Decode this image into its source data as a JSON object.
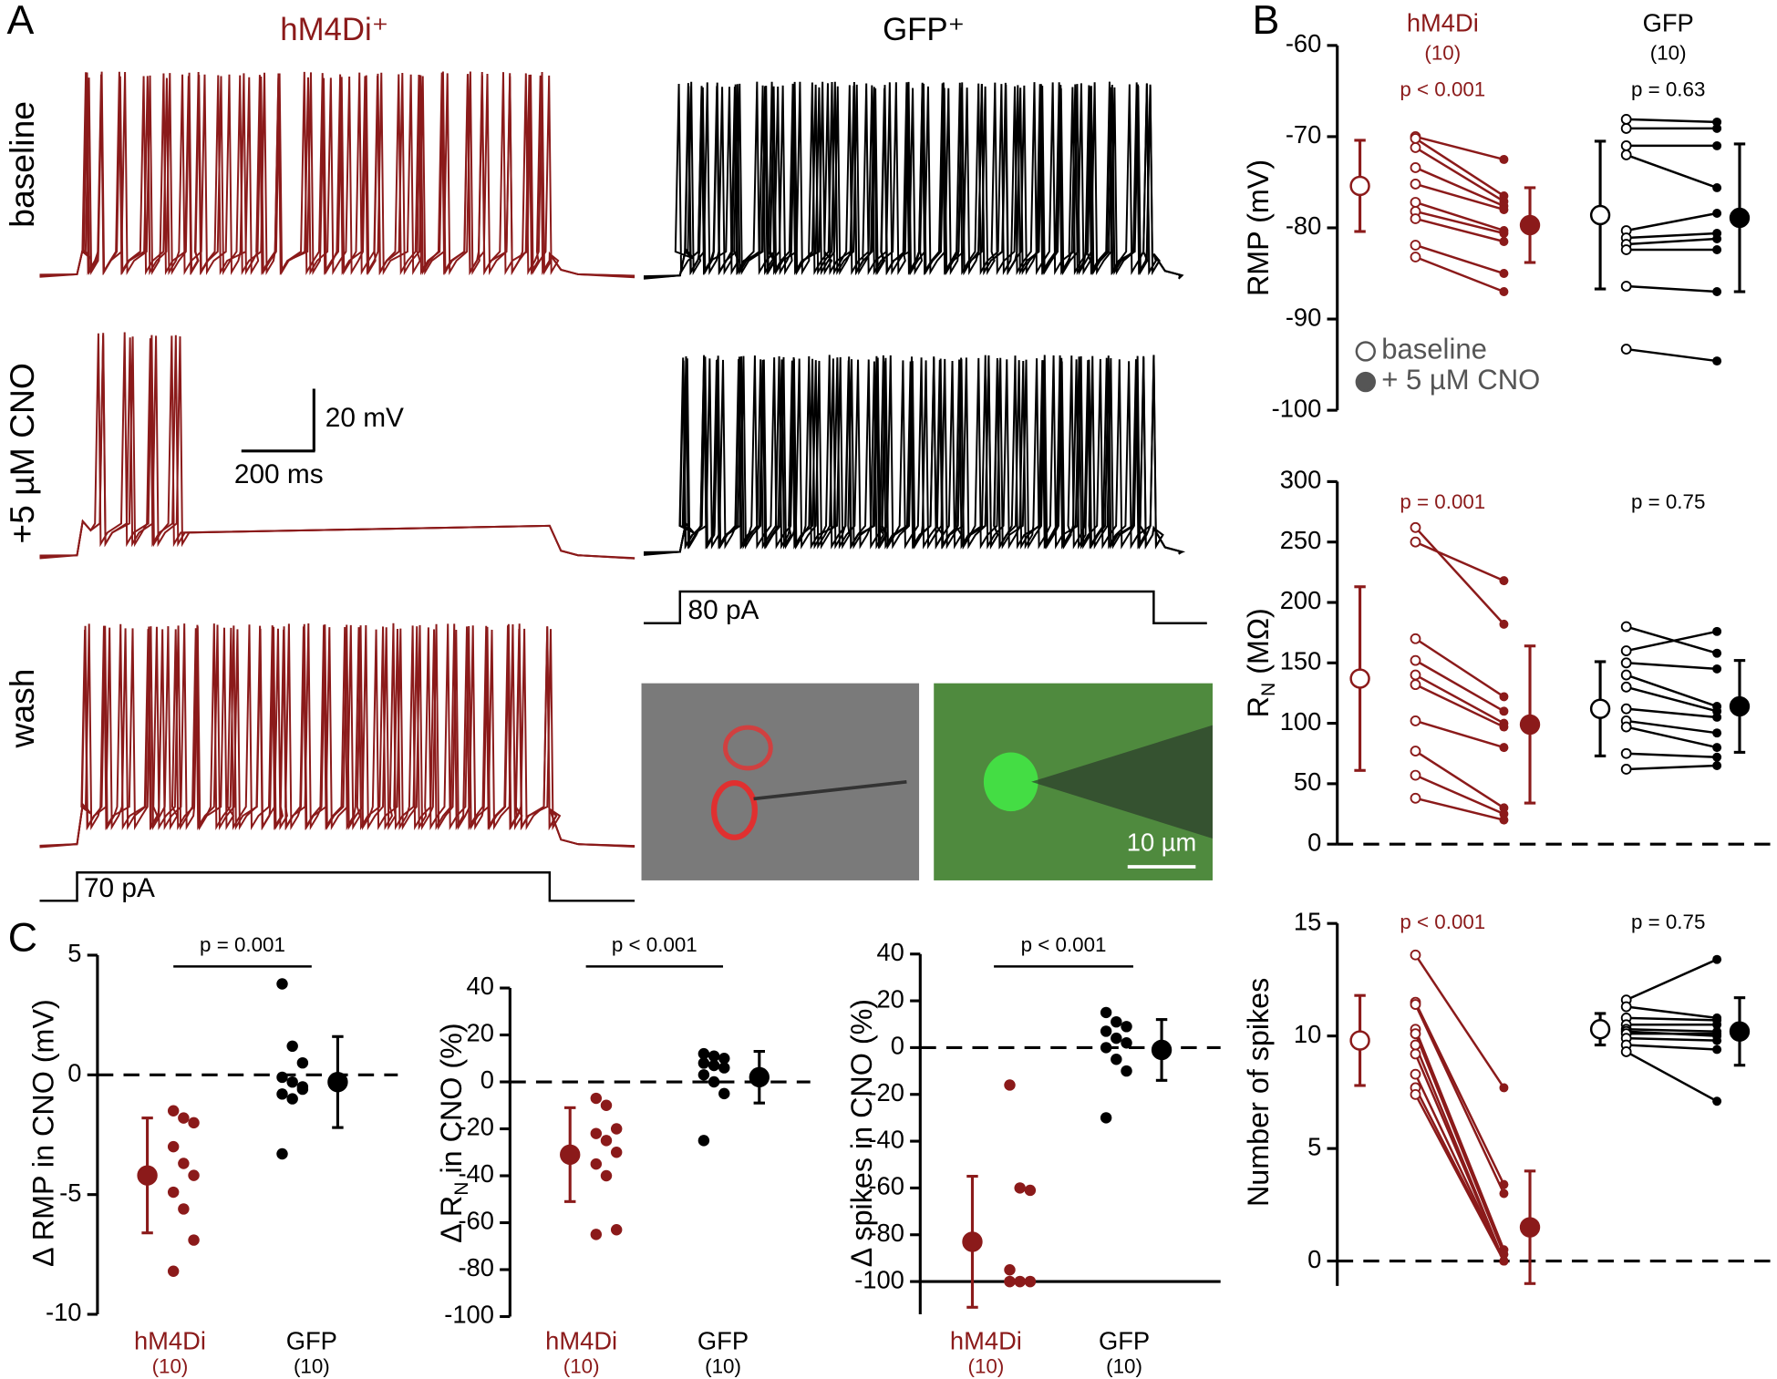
{
  "panel_labels": [
    "A",
    "B",
    "C"
  ],
  "panel_a": {
    "columns": [
      "hM4Di⁺",
      "GFP⁺"
    ],
    "rows": [
      "baseline",
      "+5 µM CNO",
      "wash"
    ],
    "scale_voltage": "20 mV",
    "scale_time": "200 ms",
    "currents": [
      "70 pA",
      "80 pA"
    ],
    "image_scale": "10 µm"
  },
  "chart_data": [
    {
      "type": "paired",
      "y_label": "RMP (mV)",
      "ylim": [
        -100,
        -60
      ],
      "yticks": [
        -100,
        -90,
        -80,
        -70,
        -60
      ],
      "legend": [
        "baseline",
        "+ 5 µM CNO"
      ],
      "groups": [
        {
          "name": "hM4Di",
          "n": "(10)",
          "color": "#8b1a1a",
          "p_label": "p < 0.001",
          "baseline": [
            -70.0,
            -70.2,
            -71.2,
            -73.4,
            -75.2,
            -77.2,
            -78.2,
            -79.0,
            -81.9,
            -83.2
          ],
          "cno": [
            -72.5,
            -76.5,
            -77.1,
            -77.6,
            -78.0,
            -80.3,
            -80.6,
            -81.5,
            -85.0,
            -87.0
          ],
          "baseline_mean": -75.4,
          "baseline_sd": 5.0,
          "cno_mean": -79.7,
          "cno_sd": 4.1
        },
        {
          "name": "GFP",
          "n": "(10)",
          "color": "#000000",
          "p_label": "p = 0.63",
          "baseline": [
            -68.1,
            -69.1,
            -71.0,
            -72.0,
            -80.3,
            -81.1,
            -81.8,
            -82.4,
            -86.4,
            -93.3
          ],
          "cno": [
            -68.4,
            -69.1,
            -71.0,
            -75.6,
            -78.4,
            -80.6,
            -81.2,
            -82.4,
            -87.0,
            -94.6
          ],
          "baseline_mean": -78.6,
          "baseline_sd": 8.1,
          "cno_mean": -78.9,
          "cno_sd": 8.1
        }
      ]
    },
    {
      "type": "paired",
      "y_label": "R",
      "y_label_sub": "N",
      "y_label_rest": " (MΩ)",
      "ylim": [
        0,
        300
      ],
      "yticks": [
        0,
        50,
        100,
        150,
        200,
        250,
        300
      ],
      "zero_line": true,
      "groups": [
        {
          "color": "#8b1a1a",
          "p_label": "p = 0.001",
          "baseline": [
            262,
            250,
            170,
            152,
            140,
            132,
            102,
            77,
            57,
            38
          ],
          "cno": [
            182,
            218,
            122,
            110,
            100,
            97,
            80,
            30,
            25,
            20
          ],
          "baseline_mean": 137,
          "baseline_sd": 76,
          "cno_mean": 99,
          "cno_sd": 65
        },
        {
          "color": "#000000",
          "p_label": "p = 0.75",
          "baseline": [
            180,
            160,
            150,
            140,
            130,
            112,
            102,
            97,
            75,
            62
          ],
          "cno": [
            158,
            176,
            145,
            114,
            110,
            105,
            92,
            80,
            72,
            65
          ],
          "baseline_mean": 112,
          "baseline_sd": 39,
          "cno_mean": 114,
          "cno_sd": 38
        }
      ]
    },
    {
      "type": "paired",
      "y_label": "Number of spikes",
      "ylim": [
        0,
        15
      ],
      "yticks": [
        0,
        5,
        10,
        15
      ],
      "zero_line": true,
      "groups": [
        {
          "color": "#8b1a1a",
          "p_label": "p < 0.001",
          "baseline": [
            13.6,
            11.5,
            11.4,
            10.3,
            10.1,
            9.6,
            9.2,
            8.3,
            7.7,
            7.4
          ],
          "cno": [
            7.7,
            3.4,
            3.0,
            0.5,
            0.3,
            0,
            0,
            0,
            0,
            0
          ],
          "baseline_mean": 9.8,
          "baseline_sd": 2.0,
          "cno_mean": 1.5,
          "cno_sd": 2.5
        },
        {
          "color": "#000000",
          "p_label": "p = 0.75",
          "baseline": [
            11.6,
            11.3,
            10.8,
            10.5,
            10.3,
            10.2,
            10.1,
            9.9,
            9.6,
            9.3
          ],
          "cno": [
            13.4,
            10.8,
            10.7,
            10.5,
            10.2,
            10.0,
            10.1,
            9.8,
            9.4,
            7.1
          ],
          "baseline_mean": 10.3,
          "baseline_sd": 0.7,
          "cno_mean": 10.2,
          "cno_sd": 1.5
        }
      ]
    },
    {
      "type": "dot",
      "y_label": "Δ RMP in CNO (mV)",
      "ylim": [
        -10,
        5
      ],
      "yticks": [
        -10,
        -5,
        0,
        5
      ],
      "zero_line": true,
      "p_label": "p = 0.001",
      "groups": [
        {
          "name": "hM4Di",
          "n": "(10)",
          "color": "#8b1a1a",
          "values": [
            -1.5,
            -1.8,
            -2.0,
            -3.0,
            -3.7,
            -4.2,
            -4.9,
            -5.6,
            -6.9,
            -8.2
          ],
          "mean": -4.2,
          "sd": 2.4
        },
        {
          "name": "GFP",
          "n": "(10)",
          "color": "#000000",
          "values": [
            3.8,
            1.2,
            0.5,
            -0.1,
            -0.3,
            -0.5,
            -0.8,
            -1.0,
            -0.6,
            -3.3
          ],
          "mean": -0.3,
          "sd": 1.9
        }
      ]
    },
    {
      "type": "dot",
      "y_label": "Δ R",
      "y_label_sub": "N",
      "y_label_rest": " in CNO (%)",
      "ylim": [
        -100,
        40
      ],
      "yticks": [
        -100,
        -80,
        -60,
        -40,
        -20,
        0,
        20,
        40
      ],
      "zero_line": true,
      "p_label": "p < 0.001",
      "groups": [
        {
          "name": "hM4Di",
          "n": "(10)",
          "color": "#8b1a1a",
          "values": [
            -7,
            -10,
            -20,
            -22,
            -25,
            -30,
            -35,
            -40,
            -63,
            -65
          ],
          "mean": -31,
          "sd": 20
        },
        {
          "name": "GFP",
          "n": "(10)",
          "color": "#000000",
          "values": [
            12,
            11,
            10,
            8,
            7,
            6,
            3,
            0,
            -5,
            -25
          ],
          "mean": 2,
          "sd": 11
        }
      ]
    },
    {
      "type": "dot",
      "y_label": "Δ spikes in CNO (%)",
      "ylim": [
        -114,
        40
      ],
      "yticks": [
        -100,
        -80,
        -60,
        -40,
        -20,
        0,
        20,
        40
      ],
      "zero_line": true,
      "ref_line": -100,
      "p_label": "p < 0.001",
      "groups": [
        {
          "name": "hM4Di",
          "n": "(10)",
          "color": "#8b1a1a",
          "values": [
            -16,
            -60,
            -61,
            -95,
            -100,
            -100,
            -100,
            -100,
            -100,
            -100
          ],
          "mean": -83,
          "sd": 28
        },
        {
          "name": "GFP",
          "n": "(10)",
          "color": "#000000",
          "values": [
            15,
            11,
            9,
            7,
            4,
            2,
            0,
            -5,
            -10,
            -30
          ],
          "mean": -1,
          "sd": 13
        }
      ]
    }
  ]
}
